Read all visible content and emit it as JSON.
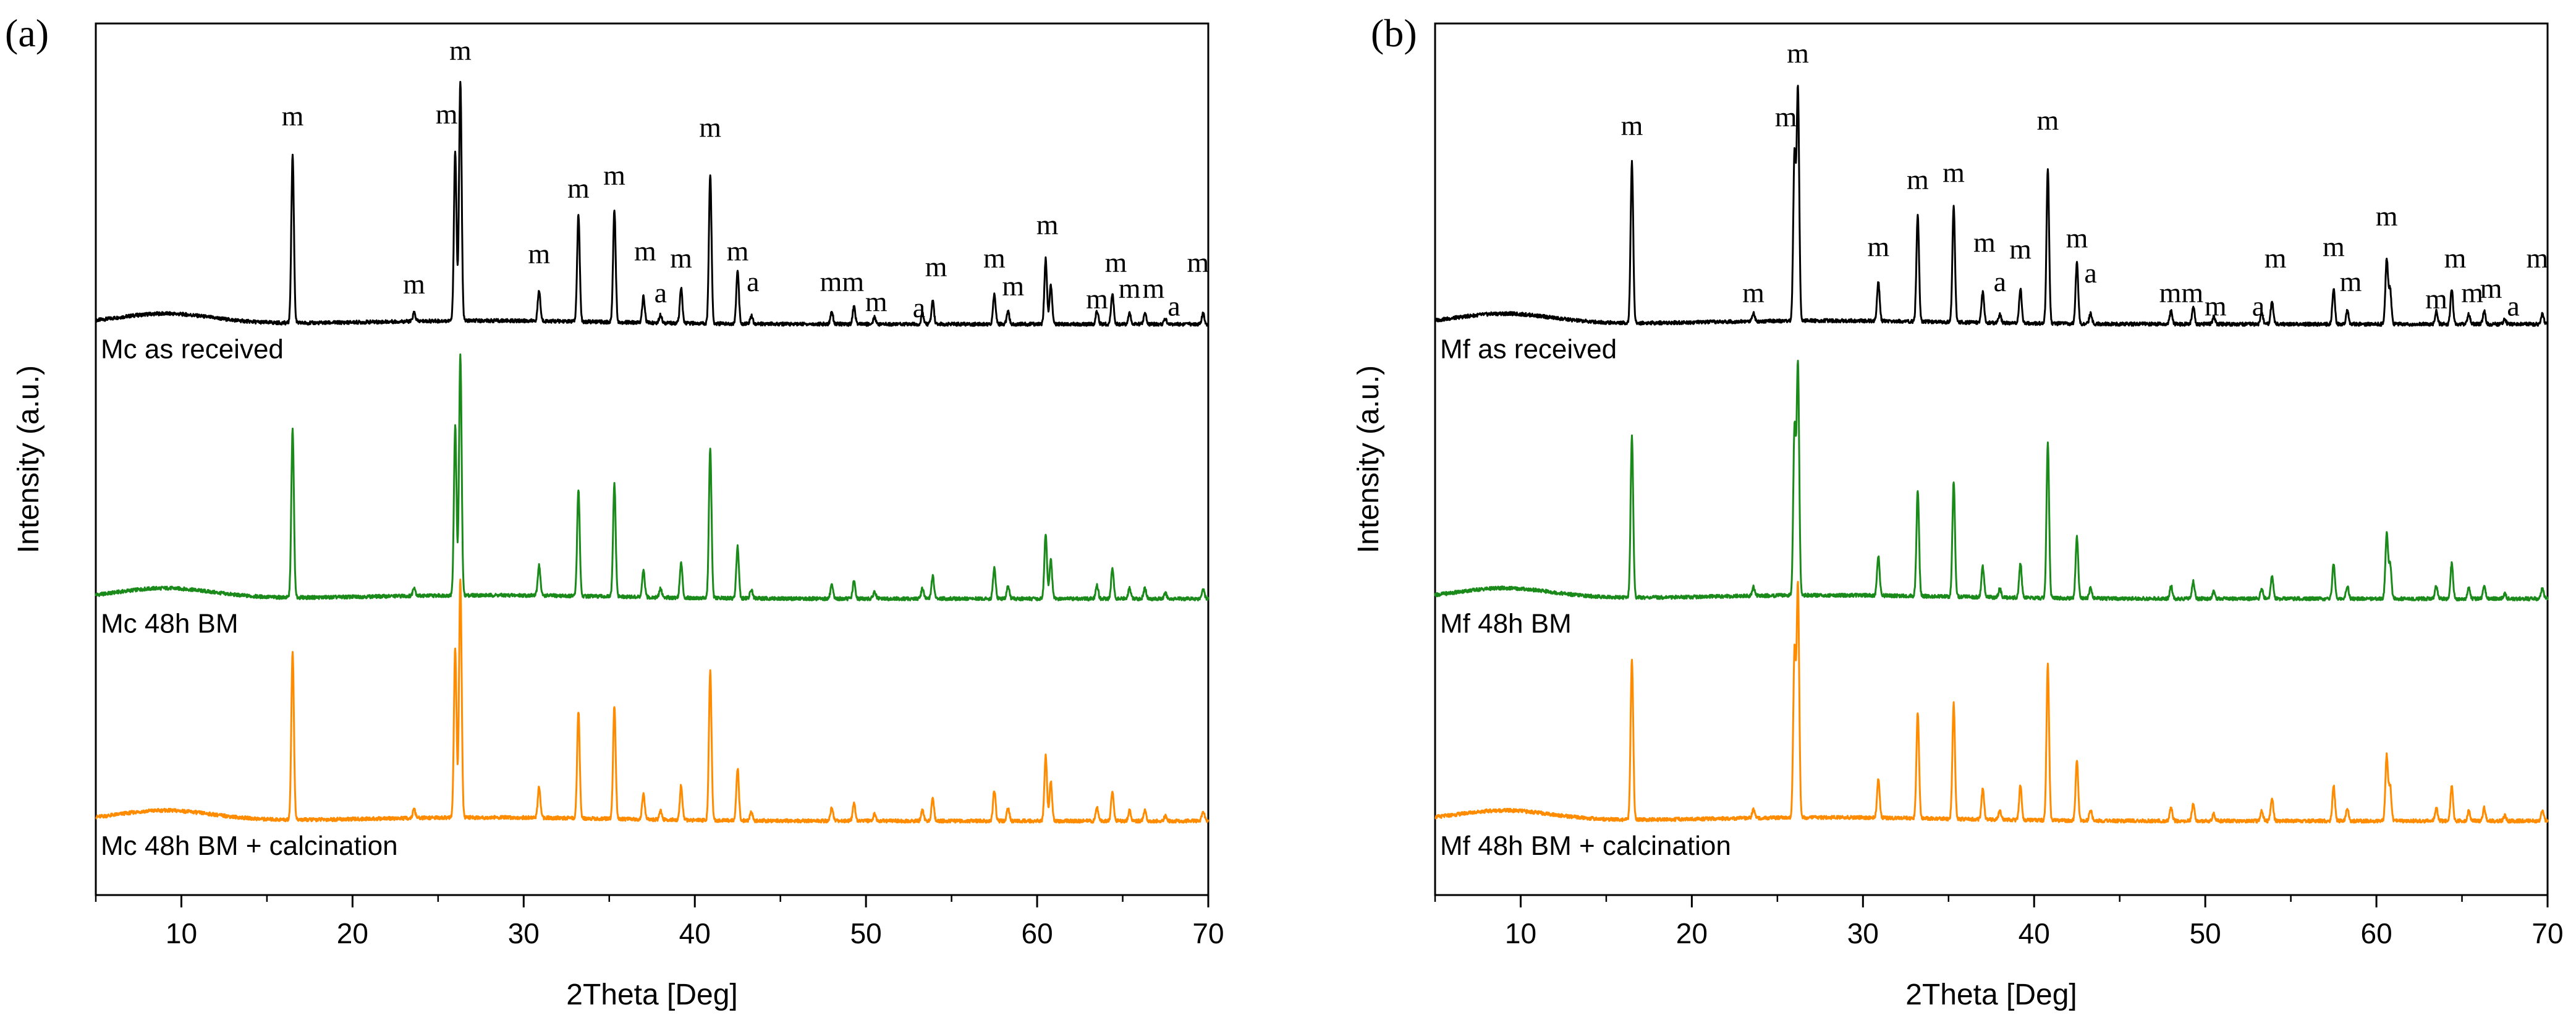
{
  "figure": {
    "colors": {
      "as_received": "#000000",
      "bm_48h": "#1a8a1a",
      "bm_calcination": "#ff8c00",
      "axis": "#000000"
    }
  },
  "chart_data": [
    {
      "type": "line",
      "panel_label": "(a)",
      "xlabel": "2Theta [Deg]",
      "ylabel": "Intensity (a.u.)",
      "xlim": [
        5,
        70
      ],
      "xticks": [
        10,
        20,
        30,
        40,
        50,
        60,
        70
      ],
      "series": [
        {
          "name": "Mc as received",
          "color_key": "as_received",
          "baseline": 0.655,
          "peak_scale": 1.0
        },
        {
          "name": "Mc 48h BM",
          "color_key": "bm_48h",
          "baseline": 0.34,
          "peak_scale": 1.0
        },
        {
          "name": "Mc 48h BM + calcination",
          "color_key": "bm_calcination",
          "baseline": 0.085,
          "peak_scale": 1.0
        }
      ],
      "peaks": [
        {
          "x": 16.5,
          "h": 0.193
        },
        {
          "x": 23.6,
          "h": 0.01
        },
        {
          "x": 26.0,
          "h": 0.195
        },
        {
          "x": 26.3,
          "h": 0.275
        },
        {
          "x": 30.9,
          "h": 0.035
        },
        {
          "x": 33.2,
          "h": 0.123
        },
        {
          "x": 35.3,
          "h": 0.13
        },
        {
          "x": 37.0,
          "h": 0.03
        },
        {
          "x": 38.0,
          "h": 0.01
        },
        {
          "x": 39.2,
          "h": 0.04
        },
        {
          "x": 40.9,
          "h": 0.172
        },
        {
          "x": 42.5,
          "h": 0.06
        },
        {
          "x": 43.3,
          "h": 0.01
        },
        {
          "x": 48.0,
          "h": 0.015
        },
        {
          "x": 49.3,
          "h": 0.02
        },
        {
          "x": 50.5,
          "h": 0.008
        },
        {
          "x": 53.3,
          "h": 0.012
        },
        {
          "x": 53.9,
          "h": 0.026
        },
        {
          "x": 57.5,
          "h": 0.035
        },
        {
          "x": 58.3,
          "h": 0.015
        },
        {
          "x": 60.5,
          "h": 0.075
        },
        {
          "x": 60.8,
          "h": 0.045
        },
        {
          "x": 63.5,
          "h": 0.015
        },
        {
          "x": 64.4,
          "h": 0.035
        },
        {
          "x": 65.4,
          "h": 0.012
        },
        {
          "x": 66.3,
          "h": 0.012
        },
        {
          "x": 67.5,
          "h": 0.006
        },
        {
          "x": 69.7,
          "h": 0.012
        }
      ],
      "annotations": [
        {
          "text": "m",
          "x": 16.5,
          "y": 0.883
        },
        {
          "text": "m",
          "x": 23.6,
          "y": 0.69
        },
        {
          "text": "m",
          "x": 25.5,
          "y": 0.885
        },
        {
          "text": "m",
          "x": 26.3,
          "y": 0.958
        },
        {
          "text": "m",
          "x": 30.9,
          "y": 0.725
        },
        {
          "text": "m",
          "x": 33.2,
          "y": 0.8
        },
        {
          "text": "m",
          "x": 35.3,
          "y": 0.815
        },
        {
          "text": "m",
          "x": 37.1,
          "y": 0.728
        },
        {
          "text": "a",
          "x": 38.0,
          "y": 0.68
        },
        {
          "text": "m",
          "x": 39.2,
          "y": 0.72
        },
        {
          "text": "m",
          "x": 40.9,
          "y": 0.87
        },
        {
          "text": "m",
          "x": 42.5,
          "y": 0.728
        },
        {
          "text": "a",
          "x": 43.4,
          "y": 0.693
        },
        {
          "text": "mm",
          "x": 48.6,
          "y": 0.693
        },
        {
          "text": "m",
          "x": 50.6,
          "y": 0.67
        },
        {
          "text": "a",
          "x": 53.1,
          "y": 0.663
        },
        {
          "text": "m",
          "x": 54.1,
          "y": 0.71
        },
        {
          "text": "m",
          "x": 57.5,
          "y": 0.72
        },
        {
          "text": "m",
          "x": 58.6,
          "y": 0.688
        },
        {
          "text": "m",
          "x": 60.6,
          "y": 0.758
        },
        {
          "text": "m",
          "x": 63.5,
          "y": 0.673
        },
        {
          "text": "m",
          "x": 64.6,
          "y": 0.715
        },
        {
          "text": "m",
          "x": 65.4,
          "y": 0.685
        },
        {
          "text": "m",
          "x": 66.8,
          "y": 0.685
        },
        {
          "text": "a",
          "x": 68.0,
          "y": 0.665
        },
        {
          "text": "m",
          "x": 69.4,
          "y": 0.715
        }
      ]
    },
    {
      "type": "line",
      "panel_label": "(b)",
      "xlabel": "2Theta [Deg]",
      "ylabel": "Intensity (a.u.)",
      "xlim": [
        5,
        70
      ],
      "xticks": [
        10,
        20,
        30,
        40,
        50,
        60,
        70
      ],
      "series": [
        {
          "name": "Mf as received",
          "color_key": "as_received",
          "baseline": 0.655,
          "peak_scale": 1.0
        },
        {
          "name": "Mf 48h BM",
          "color_key": "bm_48h",
          "baseline": 0.34,
          "peak_scale": 1.0
        },
        {
          "name": "Mf 48h BM + calcination",
          "color_key": "bm_calcination",
          "baseline": 0.085,
          "peak_scale": 1.0
        }
      ],
      "peaks": [
        {
          "x": 16.5,
          "h": 0.185
        },
        {
          "x": 23.6,
          "h": 0.01
        },
        {
          "x": 26.0,
          "h": 0.19
        },
        {
          "x": 26.2,
          "h": 0.265
        },
        {
          "x": 30.9,
          "h": 0.045
        },
        {
          "x": 33.2,
          "h": 0.122
        },
        {
          "x": 35.3,
          "h": 0.132
        },
        {
          "x": 37.0,
          "h": 0.035
        },
        {
          "x": 38.0,
          "h": 0.01
        },
        {
          "x": 39.2,
          "h": 0.04
        },
        {
          "x": 40.8,
          "h": 0.178
        },
        {
          "x": 42.5,
          "h": 0.07
        },
        {
          "x": 43.3,
          "h": 0.012
        },
        {
          "x": 48.0,
          "h": 0.015
        },
        {
          "x": 49.3,
          "h": 0.02
        },
        {
          "x": 50.5,
          "h": 0.008
        },
        {
          "x": 53.3,
          "h": 0.012
        },
        {
          "x": 53.9,
          "h": 0.026
        },
        {
          "x": 57.5,
          "h": 0.04
        },
        {
          "x": 58.3,
          "h": 0.015
        },
        {
          "x": 60.6,
          "h": 0.075
        },
        {
          "x": 60.8,
          "h": 0.04
        },
        {
          "x": 63.5,
          "h": 0.015
        },
        {
          "x": 64.4,
          "h": 0.04
        },
        {
          "x": 65.4,
          "h": 0.012
        },
        {
          "x": 66.3,
          "h": 0.015
        },
        {
          "x": 67.5,
          "h": 0.006
        },
        {
          "x": 69.7,
          "h": 0.012
        }
      ],
      "annotations": [
        {
          "text": "m",
          "x": 16.5,
          "y": 0.872
        },
        {
          "text": "m",
          "x": 23.6,
          "y": 0.68
        },
        {
          "text": "m",
          "x": 25.5,
          "y": 0.882
        },
        {
          "text": "m",
          "x": 26.2,
          "y": 0.955
        },
        {
          "text": "m",
          "x": 30.9,
          "y": 0.733
        },
        {
          "text": "m",
          "x": 33.2,
          "y": 0.81
        },
        {
          "text": "m",
          "x": 35.3,
          "y": 0.818
        },
        {
          "text": "m",
          "x": 37.1,
          "y": 0.738
        },
        {
          "text": "a",
          "x": 38.0,
          "y": 0.693
        },
        {
          "text": "m",
          "x": 39.2,
          "y": 0.73
        },
        {
          "text": "m",
          "x": 40.8,
          "y": 0.878
        },
        {
          "text": "m",
          "x": 42.5,
          "y": 0.743
        },
        {
          "text": "a",
          "x": 43.3,
          "y": 0.703
        },
        {
          "text": "mm",
          "x": 48.6,
          "y": 0.68
        },
        {
          "text": "m",
          "x": 50.6,
          "y": 0.665
        },
        {
          "text": "a",
          "x": 53.1,
          "y": 0.665
        },
        {
          "text": "m",
          "x": 54.1,
          "y": 0.72
        },
        {
          "text": "m",
          "x": 57.5,
          "y": 0.733
        },
        {
          "text": "m",
          "x": 58.5,
          "y": 0.693
        },
        {
          "text": "m",
          "x": 60.6,
          "y": 0.768
        },
        {
          "text": "m",
          "x": 63.5,
          "y": 0.673
        },
        {
          "text": "m",
          "x": 64.6,
          "y": 0.72
        },
        {
          "text": "m",
          "x": 65.6,
          "y": 0.68
        },
        {
          "text": "m",
          "x": 66.7,
          "y": 0.685
        },
        {
          "text": "a",
          "x": 68.0,
          "y": 0.665
        },
        {
          "text": "m",
          "x": 69.4,
          "y": 0.72
        }
      ]
    }
  ]
}
